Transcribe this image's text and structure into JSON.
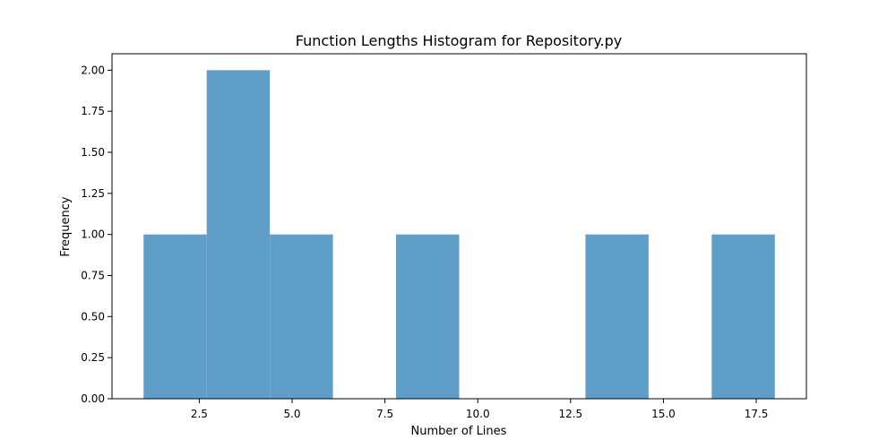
{
  "chart_data": {
    "type": "bar",
    "title": "Function Lengths Histogram for Repository.py",
    "xlabel": "Number of Lines",
    "ylabel": "Frequency",
    "xlim": [
      0.15,
      18.85
    ],
    "ylim": [
      0.0,
      2.1
    ],
    "bar_color": "#5f9ec9",
    "bins": [
      {
        "start": 1.0,
        "end": 2.7,
        "value": 1
      },
      {
        "start": 2.7,
        "end": 4.4,
        "value": 2
      },
      {
        "start": 4.4,
        "end": 6.1,
        "value": 1
      },
      {
        "start": 6.1,
        "end": 7.8,
        "value": 0
      },
      {
        "start": 7.8,
        "end": 9.5,
        "value": 1
      },
      {
        "start": 9.5,
        "end": 11.2,
        "value": 0
      },
      {
        "start": 11.2,
        "end": 12.9,
        "value": 0
      },
      {
        "start": 12.9,
        "end": 14.6,
        "value": 1
      },
      {
        "start": 14.6,
        "end": 16.3,
        "value": 0
      },
      {
        "start": 16.3,
        "end": 18.0,
        "value": 1
      }
    ],
    "x_ticks": [
      {
        "value": 2.5,
        "label": "2.5"
      },
      {
        "value": 5.0,
        "label": "5.0"
      },
      {
        "value": 7.5,
        "label": "7.5"
      },
      {
        "value": 10.0,
        "label": "10.0"
      },
      {
        "value": 12.5,
        "label": "12.5"
      },
      {
        "value": 15.0,
        "label": "15.0"
      },
      {
        "value": 17.5,
        "label": "17.5"
      }
    ],
    "y_ticks": [
      {
        "value": 0.0,
        "label": "0.00"
      },
      {
        "value": 0.25,
        "label": "0.25"
      },
      {
        "value": 0.5,
        "label": "0.50"
      },
      {
        "value": 0.75,
        "label": "0.75"
      },
      {
        "value": 1.0,
        "label": "1.00"
      },
      {
        "value": 1.25,
        "label": "1.25"
      },
      {
        "value": 1.5,
        "label": "1.50"
      },
      {
        "value": 1.75,
        "label": "1.75"
      },
      {
        "value": 2.0,
        "label": "2.00"
      }
    ],
    "grid": false,
    "legend": false
  }
}
